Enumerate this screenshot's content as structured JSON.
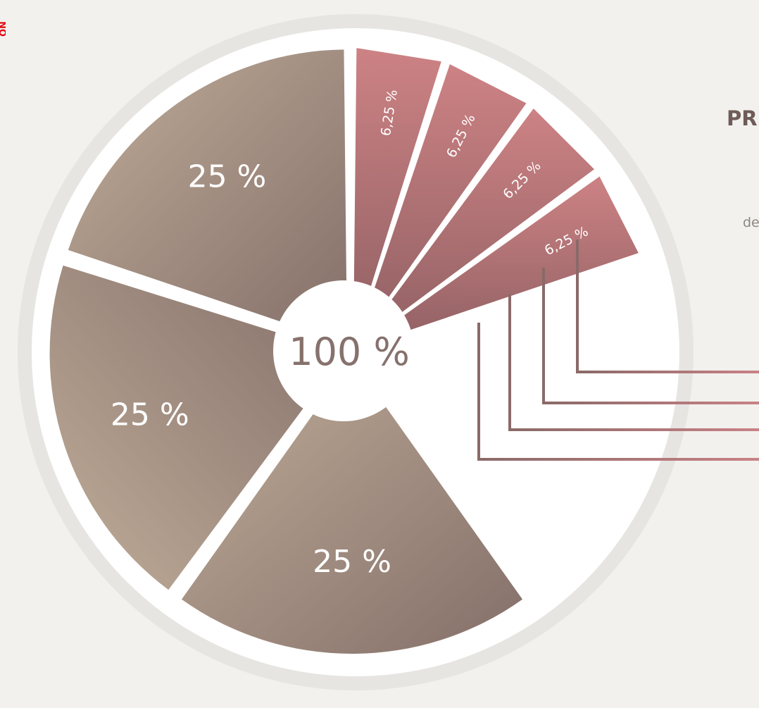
{
  "chart_data": {
    "type": "pie",
    "center_label": "100 %",
    "slices": [
      {
        "label": "6,25 %",
        "value": 6.25,
        "color": "#c47c7e"
      },
      {
        "label": "6,25 %",
        "value": 6.25,
        "color": "#c47c7e"
      },
      {
        "label": "6,25 %",
        "value": 6.25,
        "color": "#c47c7e"
      },
      {
        "label": "6,25 %",
        "value": 6.25,
        "color": "#c47c7e"
      },
      {
        "label": "",
        "value": 25,
        "color": "#ffffff"
      },
      {
        "label": "25 %",
        "value": 25,
        "color": "#b9a693"
      },
      {
        "label": "25 %",
        "value": 25,
        "color": "#b9a693"
      },
      {
        "label": "25 %",
        "value": 25,
        "color": "#b9a693"
      }
    ]
  },
  "heading_fragment": "PR",
  "subtext_fragment": "de",
  "corner_fragment": "ON",
  "colors": {
    "background": "#f2f1ee",
    "outer_ring": "#e6e4e1",
    "rose": "#c47c7e",
    "rose_dark": "#8e5f62",
    "taupe": "#b9a693",
    "taupe_dark": "#7d6a66"
  }
}
